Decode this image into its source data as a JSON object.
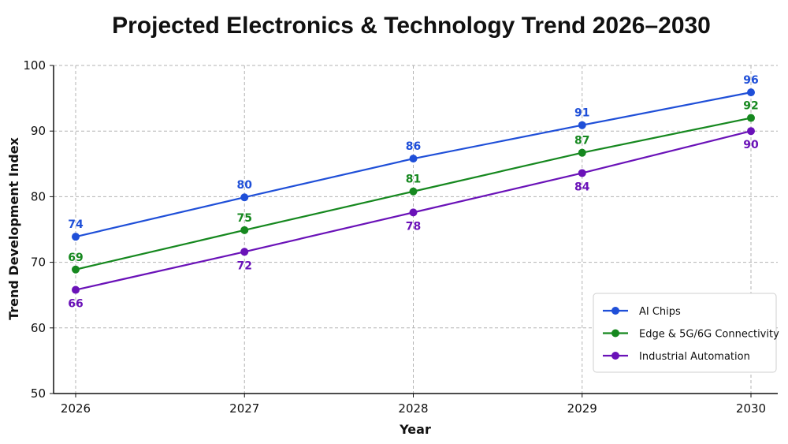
{
  "chart_data": {
    "type": "line",
    "title": "Projected Electronics & Technology Trend 2026–2030",
    "xlabel": "Year",
    "ylabel": "Trend Development Index",
    "x": [
      "2026",
      "2027",
      "2028",
      "2029",
      "2030"
    ],
    "ylim": [
      50,
      100
    ],
    "yticks": [
      50,
      60,
      70,
      80,
      90,
      100
    ],
    "grid": true,
    "legend_position": "lower-right",
    "series": [
      {
        "name": "AI Chips",
        "color": "#1f4fd8",
        "values": [
          73.9,
          79.9,
          85.8,
          90.9,
          95.9
        ],
        "labels": [
          "74",
          "80",
          "86",
          "91",
          "96"
        ],
        "label_position": "above"
      },
      {
        "name": "Edge & 5G/6G Connectivity",
        "color": "#16881f",
        "values": [
          68.9,
          74.9,
          80.8,
          86.7,
          92.0
        ],
        "labels": [
          "69",
          "75",
          "81",
          "87",
          "92"
        ],
        "label_position": "above"
      },
      {
        "name": "Industrial Automation",
        "color": "#6a12b8",
        "values": [
          65.8,
          71.6,
          77.6,
          83.6,
          90.0
        ],
        "labels": [
          "66",
          "72",
          "78",
          "84",
          "90"
        ],
        "label_position": "below"
      }
    ]
  }
}
